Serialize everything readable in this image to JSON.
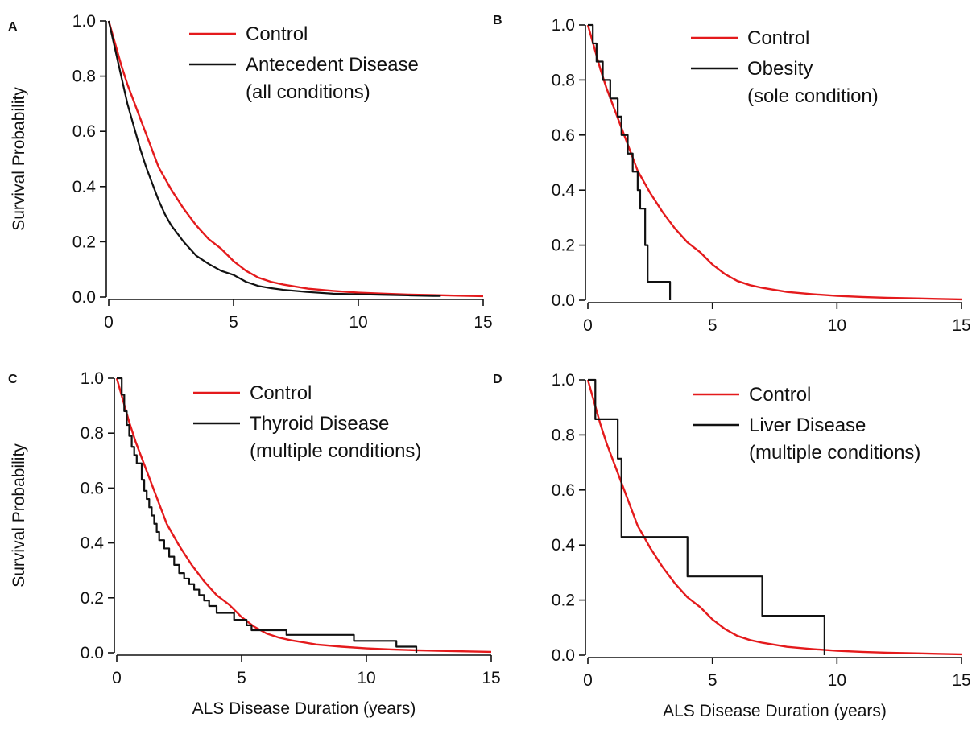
{
  "colors": {
    "control": "#e41a1c",
    "disease": "#111111",
    "axis": "#111111"
  },
  "chart_data": [
    {
      "type": "line",
      "panel": "A",
      "xlabel": "",
      "ylabel": "Survival Probability",
      "xlim": [
        0,
        15
      ],
      "ylim": [
        0,
        1
      ],
      "xticks": [
        "0",
        "5",
        "10",
        "15"
      ],
      "yticks": [
        "0.0",
        "0.2",
        "0.4",
        "0.6",
        "0.8",
        "1.0"
      ],
      "grid": false,
      "legend_position": "top-right",
      "series": [
        {
          "name": "Control",
          "color": "#e41a1c",
          "step": false,
          "x": [
            0,
            0.25,
            0.5,
            0.75,
            1.0,
            1.25,
            1.5,
            1.75,
            2.0,
            2.25,
            2.5,
            3.0,
            3.5,
            4.0,
            4.5,
            5.0,
            5.5,
            6.0,
            6.5,
            7.0,
            8.0,
            9.0,
            10.0,
            11.0,
            12.0,
            13.0,
            14.0,
            15.0
          ],
          "y": [
            1.0,
            0.92,
            0.84,
            0.77,
            0.71,
            0.65,
            0.59,
            0.53,
            0.47,
            0.43,
            0.39,
            0.32,
            0.26,
            0.21,
            0.175,
            0.13,
            0.095,
            0.07,
            0.055,
            0.045,
            0.03,
            0.022,
            0.016,
            0.012,
            0.009,
            0.007,
            0.005,
            0.003
          ]
        },
        {
          "name": "Antecedent Disease",
          "name_line2": "(all conditions)",
          "color": "#111111",
          "step": false,
          "x": [
            0,
            0.25,
            0.5,
            0.75,
            1.0,
            1.25,
            1.5,
            1.75,
            2.0,
            2.25,
            2.5,
            3.0,
            3.5,
            4.0,
            4.5,
            5.0,
            5.5,
            6.0,
            6.5,
            7.0,
            8.0,
            9.0,
            10.0,
            11.0,
            12.0,
            13.0,
            13.3
          ],
          "y": [
            1.0,
            0.9,
            0.8,
            0.7,
            0.62,
            0.54,
            0.47,
            0.41,
            0.35,
            0.3,
            0.26,
            0.2,
            0.15,
            0.12,
            0.095,
            0.08,
            0.055,
            0.04,
            0.032,
            0.026,
            0.018,
            0.012,
            0.01,
            0.008,
            0.006,
            0.004,
            0.004
          ]
        }
      ]
    },
    {
      "type": "line",
      "panel": "B",
      "xlabel": "",
      "ylabel": "",
      "xlim": [
        0,
        15
      ],
      "ylim": [
        0,
        1
      ],
      "xticks": [
        "0",
        "5",
        "10",
        "15"
      ],
      "yticks": [
        "0.0",
        "0.2",
        "0.4",
        "0.6",
        "0.8",
        "1.0"
      ],
      "grid": false,
      "legend_position": "top-right",
      "series": [
        {
          "name": "Control",
          "color": "#e41a1c",
          "step": false,
          "x": [
            0,
            0.25,
            0.5,
            0.75,
            1.0,
            1.25,
            1.5,
            1.75,
            2.0,
            2.25,
            2.5,
            3.0,
            3.5,
            4.0,
            4.5,
            5.0,
            5.5,
            6.0,
            6.5,
            7.0,
            8.0,
            9.0,
            10.0,
            11.0,
            12.0,
            13.0,
            14.0,
            15.0
          ],
          "y": [
            1.0,
            0.92,
            0.84,
            0.77,
            0.71,
            0.65,
            0.59,
            0.53,
            0.47,
            0.43,
            0.39,
            0.32,
            0.26,
            0.21,
            0.175,
            0.13,
            0.095,
            0.07,
            0.055,
            0.045,
            0.03,
            0.022,
            0.016,
            0.012,
            0.009,
            0.007,
            0.005,
            0.003
          ]
        },
        {
          "name": "Obesity",
          "name_line2": "(sole condition)",
          "color": "#111111",
          "step": true,
          "x": [
            0,
            0.2,
            0.35,
            0.6,
            0.9,
            1.2,
            1.35,
            1.6,
            1.8,
            2.0,
            2.1,
            2.3,
            2.4,
            3.3
          ],
          "y": [
            1.0,
            0.933,
            0.867,
            0.8,
            0.733,
            0.667,
            0.6,
            0.533,
            0.467,
            0.4,
            0.333,
            0.2,
            0.067,
            0.0
          ]
        }
      ]
    },
    {
      "type": "line",
      "panel": "C",
      "xlabel": "ALS Disease Duration (years)",
      "ylabel": "Survival Probability",
      "xlim": [
        0,
        15
      ],
      "ylim": [
        0,
        1
      ],
      "xticks": [
        "0",
        "5",
        "10",
        "15"
      ],
      "yticks": [
        "0.0",
        "0.2",
        "0.4",
        "0.6",
        "0.8",
        "1.0"
      ],
      "grid": false,
      "legend_position": "top-right",
      "series": [
        {
          "name": "Control",
          "color": "#e41a1c",
          "step": false,
          "x": [
            0,
            0.25,
            0.5,
            0.75,
            1.0,
            1.25,
            1.5,
            1.75,
            2.0,
            2.25,
            2.5,
            3.0,
            3.5,
            4.0,
            4.5,
            5.0,
            5.5,
            6.0,
            6.5,
            7.0,
            8.0,
            9.0,
            10.0,
            11.0,
            12.0,
            13.0,
            14.0,
            15.0
          ],
          "y": [
            1.0,
            0.92,
            0.84,
            0.77,
            0.71,
            0.65,
            0.59,
            0.53,
            0.47,
            0.43,
            0.39,
            0.32,
            0.26,
            0.21,
            0.175,
            0.13,
            0.095,
            0.07,
            0.055,
            0.045,
            0.03,
            0.022,
            0.016,
            0.012,
            0.009,
            0.007,
            0.005,
            0.003
          ]
        },
        {
          "name": "Thyroid Disease",
          "name_line2": "(multiple conditions)",
          "color": "#111111",
          "step": true,
          "x": [
            0,
            0.2,
            0.3,
            0.4,
            0.5,
            0.6,
            0.7,
            0.8,
            1.0,
            1.1,
            1.2,
            1.3,
            1.4,
            1.5,
            1.6,
            1.7,
            1.9,
            2.1,
            2.3,
            2.5,
            2.7,
            2.9,
            3.1,
            3.3,
            3.5,
            3.7,
            4.0,
            4.7,
            5.2,
            5.4,
            6.8,
            9.5,
            11.2,
            12.0
          ],
          "y": [
            1.0,
            0.94,
            0.88,
            0.83,
            0.79,
            0.75,
            0.72,
            0.69,
            0.63,
            0.59,
            0.56,
            0.53,
            0.5,
            0.47,
            0.44,
            0.41,
            0.38,
            0.35,
            0.32,
            0.29,
            0.27,
            0.25,
            0.23,
            0.21,
            0.19,
            0.17,
            0.145,
            0.12,
            0.1,
            0.082,
            0.065,
            0.043,
            0.022,
            0.0
          ]
        }
      ]
    },
    {
      "type": "line",
      "panel": "D",
      "xlabel": "ALS Disease Duration (years)",
      "ylabel": "",
      "xlim": [
        0,
        15
      ],
      "ylim": [
        0,
        1
      ],
      "xticks": [
        "0",
        "5",
        "10",
        "15"
      ],
      "yticks": [
        "0.0",
        "0.2",
        "0.4",
        "0.6",
        "0.8",
        "1.0"
      ],
      "grid": false,
      "legend_position": "top-right",
      "series": [
        {
          "name": "Control",
          "color": "#e41a1c",
          "step": false,
          "x": [
            0,
            0.25,
            0.5,
            0.75,
            1.0,
            1.25,
            1.5,
            1.75,
            2.0,
            2.25,
            2.5,
            3.0,
            3.5,
            4.0,
            4.5,
            5.0,
            5.5,
            6.0,
            6.5,
            7.0,
            8.0,
            9.0,
            10.0,
            11.0,
            12.0,
            13.0,
            14.0,
            15.0
          ],
          "y": [
            1.0,
            0.92,
            0.84,
            0.77,
            0.71,
            0.65,
            0.59,
            0.53,
            0.47,
            0.43,
            0.39,
            0.32,
            0.26,
            0.21,
            0.175,
            0.13,
            0.095,
            0.07,
            0.055,
            0.045,
            0.03,
            0.022,
            0.016,
            0.012,
            0.009,
            0.007,
            0.005,
            0.003
          ]
        },
        {
          "name": "Liver Disease",
          "name_line2": "(multiple conditions)",
          "color": "#111111",
          "step": true,
          "x": [
            0,
            0.3,
            1.2,
            1.35,
            4.0,
            7.0,
            9.5
          ],
          "y": [
            1.0,
            0.857,
            0.714,
            0.429,
            0.286,
            0.143,
            0.0
          ]
        }
      ]
    }
  ]
}
